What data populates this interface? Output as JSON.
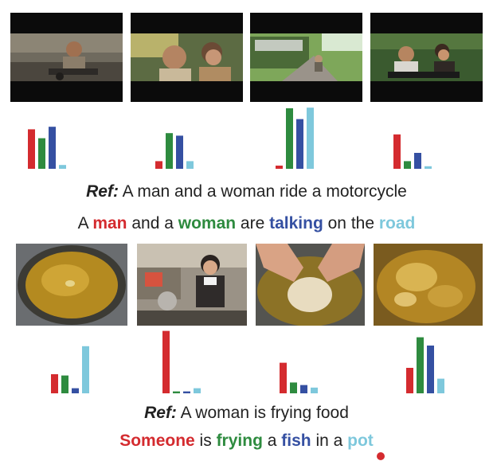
{
  "example1": {
    "frames": [
      "video-frame-motorcycle-rider",
      "video-frame-man-and-woman",
      "video-frame-bus-on-road",
      "video-frame-couple-on-motorcycle"
    ],
    "bar_values": [
      [
        0.62,
        0.48,
        0.66,
        0.06
      ],
      [
        0.12,
        0.56,
        0.52,
        0.12
      ],
      [
        0.05,
        0.95,
        0.78,
        0.96
      ],
      [
        0.54,
        0.12,
        0.25,
        0.04
      ]
    ],
    "ref_label": "Ref:",
    "ref_text": "A man and a woman ride a motorcycle",
    "generated": [
      {
        "text": "A ",
        "color": ""
      },
      {
        "text": "man",
        "color": "red"
      },
      {
        "text": " and a ",
        "color": ""
      },
      {
        "text": "woman",
        "color": "green"
      },
      {
        "text": " are ",
        "color": ""
      },
      {
        "text": "talking",
        "color": "blue"
      },
      {
        "text": " on the ",
        "color": ""
      },
      {
        "text": "road",
        "color": "cyan"
      }
    ]
  },
  "example2": {
    "frames": [
      "video-frame-oil-in-pan",
      "video-frame-woman-in-kitchen",
      "video-frame-hands-frying",
      "video-frame-bubbling-oil"
    ],
    "bar_values": [
      [
        0.3,
        0.28,
        0.08,
        0.74
      ],
      [
        0.98,
        0.03,
        0.03,
        0.08
      ],
      [
        0.48,
        0.17,
        0.13,
        0.09
      ],
      [
        0.4,
        0.88,
        0.75,
        0.23
      ]
    ],
    "ref_label": "Ref:",
    "ref_text": "A woman is frying food",
    "generated": [
      {
        "text": "Someone",
        "color": "red"
      },
      {
        "text": " is ",
        "color": ""
      },
      {
        "text": "frying",
        "color": "green"
      },
      {
        "text": " a ",
        "color": ""
      },
      {
        "text": "fish",
        "color": "blue"
      },
      {
        "text": " in a ",
        "color": ""
      },
      {
        "text": "pot",
        "color": "cyan"
      }
    ]
  },
  "colors": {
    "red": "#d42b2f",
    "green": "#2e8b3f",
    "blue": "#3550a2",
    "cyan": "#7ec8dc"
  }
}
